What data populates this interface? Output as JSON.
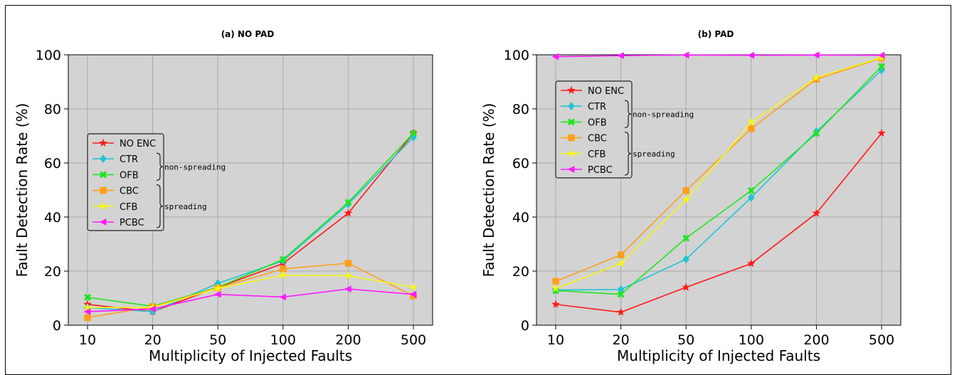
{
  "chart_data": [
    {
      "type": "line",
      "title": "(a) NO PAD",
      "xlabel": "Multiplicity of Injected Faults",
      "ylabel": "Fault Detection Rate (%)",
      "categories": [
        "10",
        "20",
        "50",
        "100",
        "200",
        "500"
      ],
      "ylim": [
        0,
        100
      ],
      "yticks": [
        "0",
        "20",
        "40",
        "60",
        "80",
        "100"
      ],
      "grid": true,
      "legend_position": "center-left",
      "legend_groups": [
        {
          "label": "non-spreading",
          "members": [
            "CTR",
            "OFB"
          ]
        },
        {
          "label": "spreading",
          "members": [
            "CBC",
            "CFB",
            "PCBC"
          ]
        }
      ],
      "series": [
        {
          "name": "NO ENC",
          "color": "#ff1a1a",
          "marker": "star",
          "values": [
            7.7,
            5.0,
            14.0,
            22.8,
            41.4,
            70.9
          ]
        },
        {
          "name": "CTR",
          "color": "#22c4d4",
          "marker": "diamond",
          "values": [
            6.5,
            5.0,
            15.5,
            23.8,
            44.8,
            69.5
          ]
        },
        {
          "name": "OFB",
          "color": "#1ee61e",
          "marker": "x",
          "values": [
            10.3,
            7.0,
            14.0,
            24.3,
            45.4,
            71.0
          ]
        },
        {
          "name": "CBC",
          "color": "#ff9f1a",
          "marker": "square",
          "values": [
            2.8,
            6.8,
            13.8,
            20.8,
            22.9,
            10.8
          ]
        },
        {
          "name": "CFB",
          "color": "#f5f51a",
          "marker": "star",
          "values": [
            6.5,
            6.6,
            13.6,
            18.5,
            18.3,
            14.0
          ]
        },
        {
          "name": "PCBC",
          "color": "#ff1aff",
          "marker": "triangle-left",
          "values": [
            5.0,
            6.0,
            11.4,
            10.4,
            13.4,
            11.4
          ]
        }
      ]
    },
    {
      "type": "line",
      "title": "(b) PAD",
      "xlabel": "Multiplicity of Injected Faults",
      "ylabel": "Fault Detection Rate (%)",
      "categories": [
        "10",
        "20",
        "50",
        "100",
        "200",
        "500"
      ],
      "ylim": [
        0,
        100
      ],
      "yticks": [
        "0",
        "20",
        "40",
        "60",
        "80",
        "100"
      ],
      "grid": true,
      "legend_position": "upper-left",
      "legend_groups": [
        {
          "label": "non-spreading",
          "members": [
            "CTR",
            "OFB"
          ]
        },
        {
          "label": "spreading",
          "members": [
            "CBC",
            "CFB",
            "PCBC"
          ]
        }
      ],
      "series": [
        {
          "name": "NO ENC",
          "color": "#ff1a1a",
          "marker": "star",
          "values": [
            7.7,
            4.8,
            14.0,
            22.8,
            41.4,
            71.0
          ]
        },
        {
          "name": "CTR",
          "color": "#22c4d4",
          "marker": "diamond",
          "values": [
            13.0,
            13.2,
            24.4,
            47.2,
            71.6,
            94.3
          ]
        },
        {
          "name": "OFB",
          "color": "#1ee61e",
          "marker": "x",
          "values": [
            12.8,
            11.4,
            32.2,
            49.8,
            70.9,
            95.7
          ]
        },
        {
          "name": "CBC",
          "color": "#ff9f1a",
          "marker": "square",
          "values": [
            16.2,
            26.0,
            49.8,
            72.7,
            91.0,
            98.8
          ]
        },
        {
          "name": "CFB",
          "color": "#f5f51a",
          "marker": "star",
          "values": [
            13.6,
            22.8,
            46.4,
            75.0,
            91.6,
            99.0
          ]
        },
        {
          "name": "PCBC",
          "color": "#ff1aff",
          "marker": "triangle-left",
          "values": [
            99.3,
            99.7,
            99.9,
            99.8,
            99.9,
            99.8
          ]
        }
      ]
    }
  ]
}
